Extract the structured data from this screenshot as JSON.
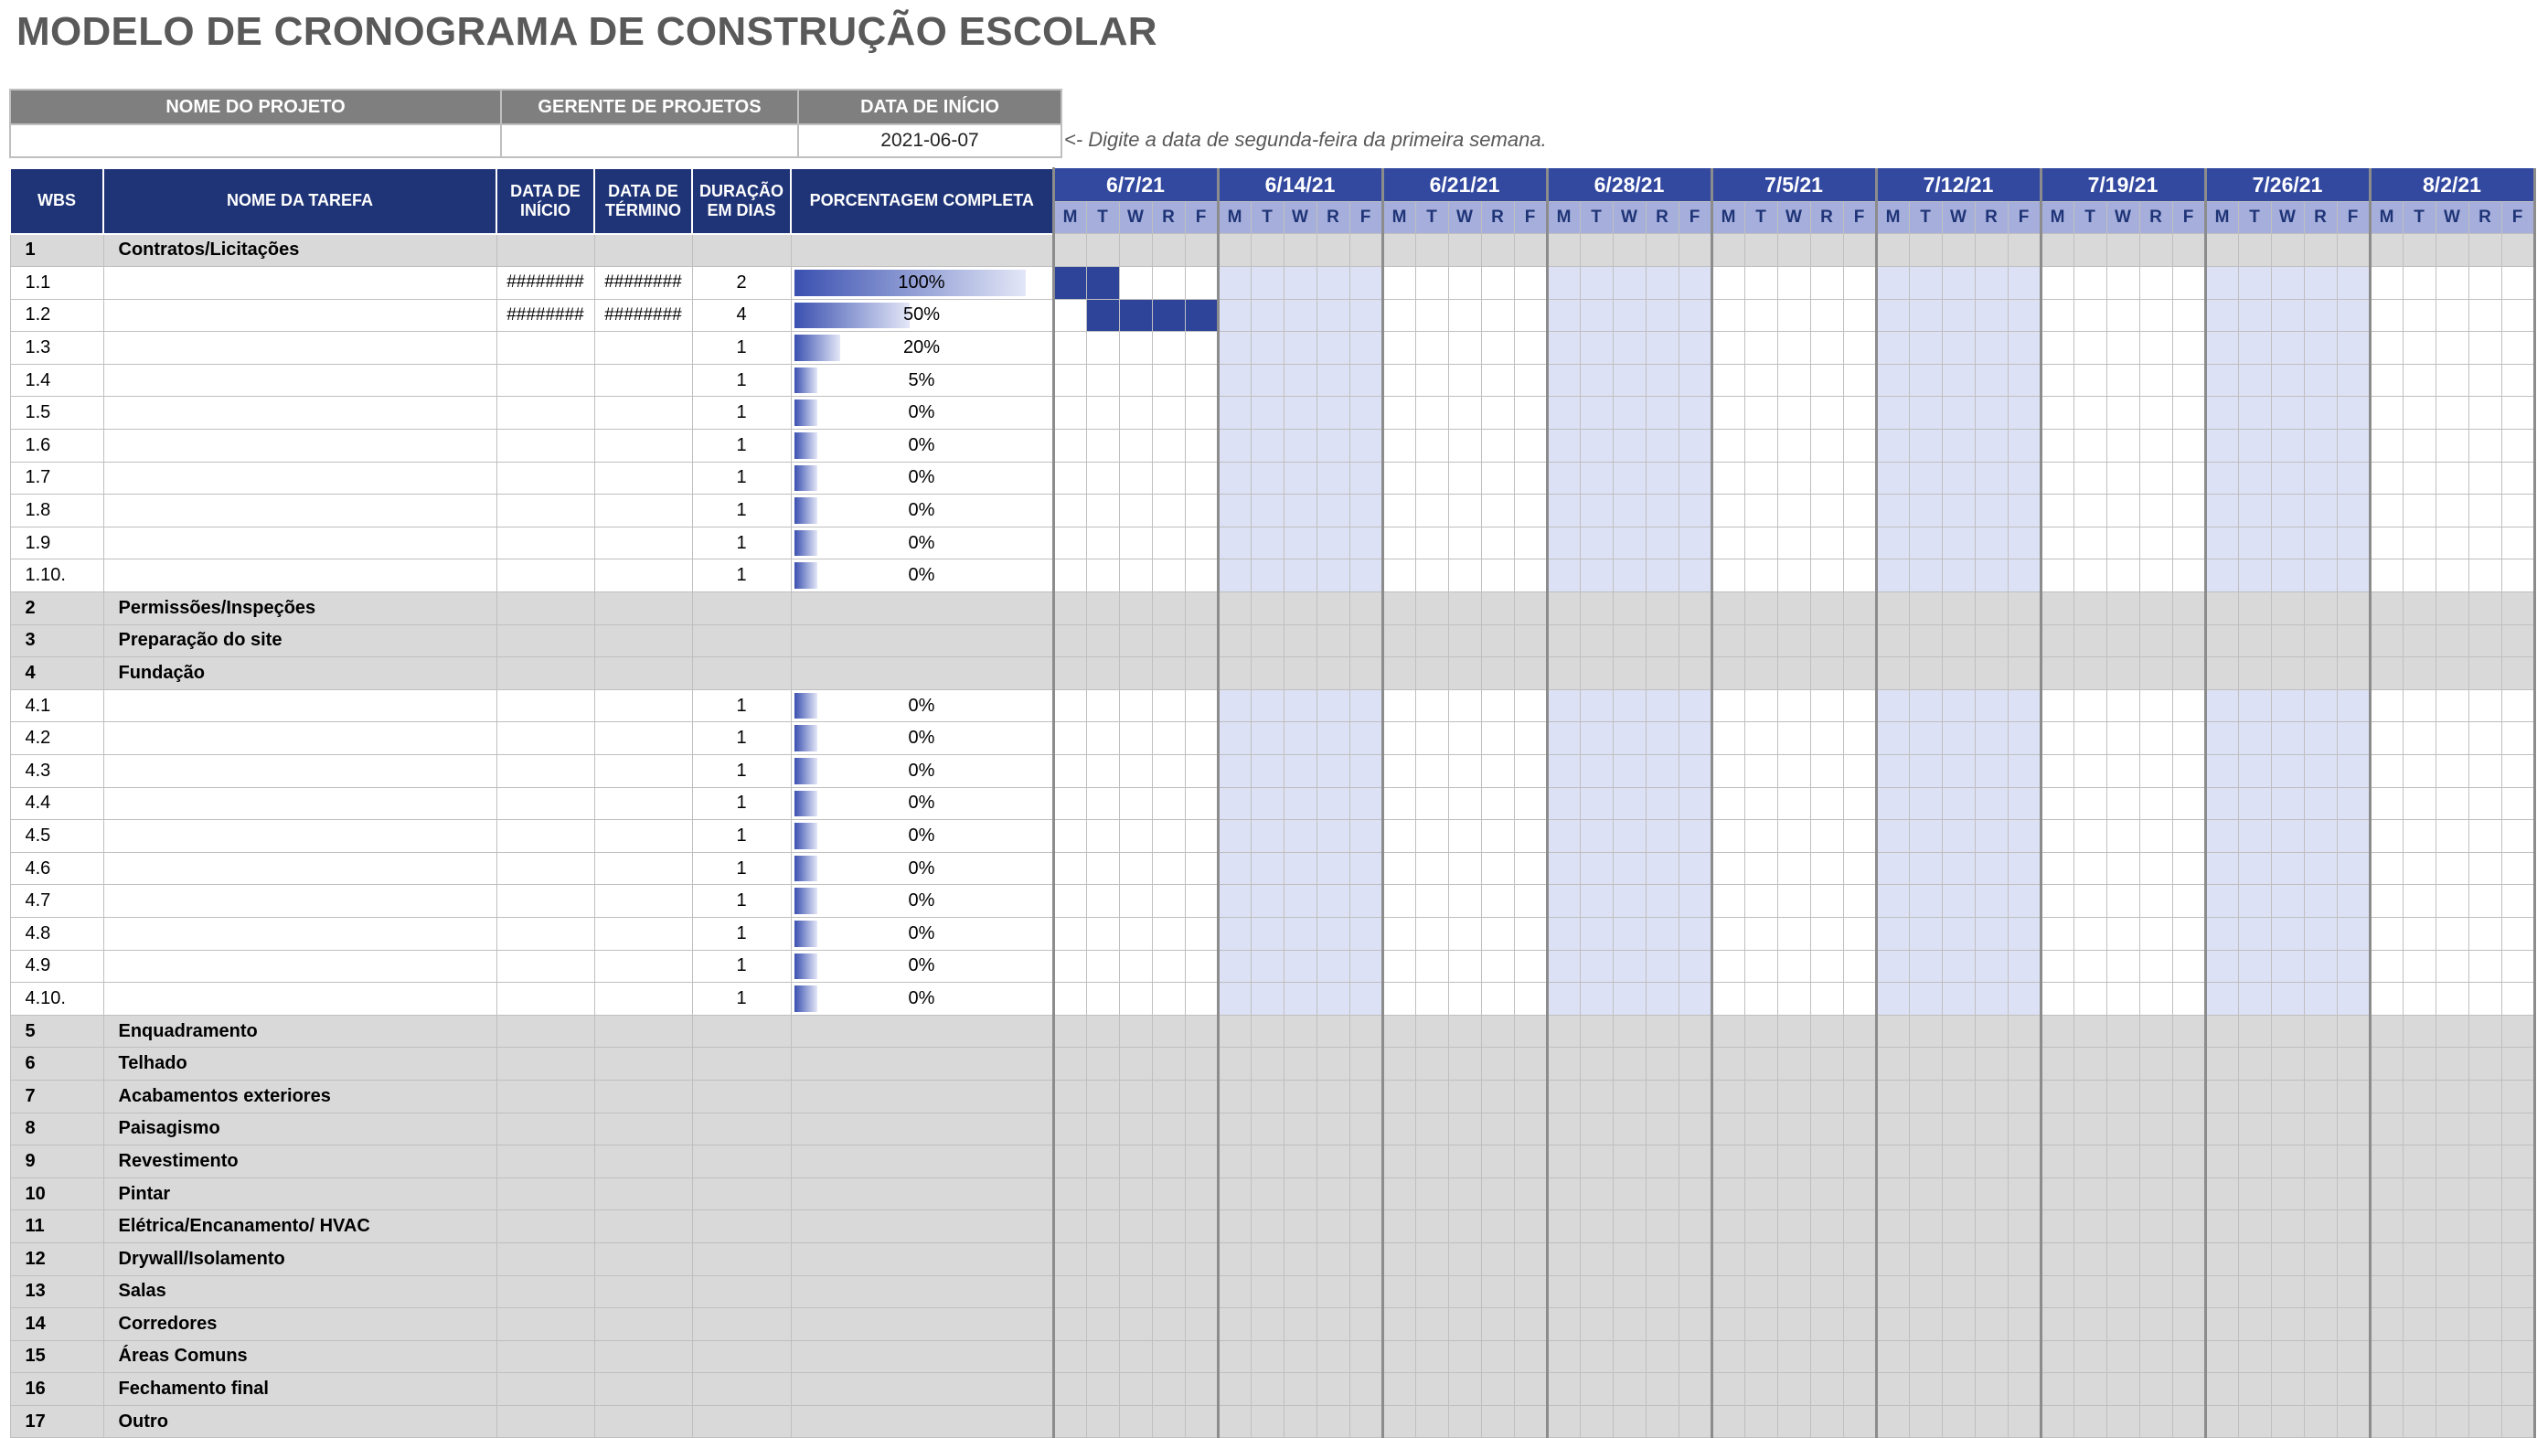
{
  "title": "MODELO DE CRONOGRAMA DE CONSTRUÇÃO ESCOLAR",
  "project": {
    "name_label": "NOME DO PROJETO",
    "manager_label": "GERENTE DE PROJETOS",
    "start_label": "DATA DE INÍCIO",
    "name_value": "",
    "manager_value": "",
    "start_value": "2021-06-07",
    "hint": "<- Digite a data de segunda-feira da primeira semana."
  },
  "headers": {
    "wbs": "WBS",
    "task": "NOME DA TAREFA",
    "start": "DATA DE INÍCIO",
    "end": "DATA DE TÉRMINO",
    "duration": "DURAÇÃO EM DIAS",
    "percent": "PORCENTAGEM COMPLETA"
  },
  "weeks": [
    "6/7/21",
    "6/14/21",
    "6/21/21",
    "6/28/21",
    "7/5/21",
    "7/12/21",
    "7/19/21",
    "7/26/21",
    "8/2/21"
  ],
  "day_letters": [
    "M",
    "T",
    "W",
    "R",
    "F"
  ],
  "colors": {
    "header": "#1f3477",
    "week_header": "#3349a0",
    "day_header": "#a6afdc",
    "alt_week": "#dde1f5",
    "group_row": "#d9d9d9",
    "gantt_fill": "#2d4499"
  },
  "rows": [
    {
      "type": "group",
      "wbs": "1",
      "name": "Contratos/Licitações"
    },
    {
      "type": "task",
      "wbs": "1.1",
      "name": "",
      "start": "########",
      "end": "########",
      "duration": "2",
      "percent": "100%",
      "pct": 1.0,
      "bar_start": 0,
      "bar_days": 2
    },
    {
      "type": "task",
      "wbs": "1.2",
      "name": "",
      "start": "########",
      "end": "########",
      "duration": "4",
      "percent": "50%",
      "pct": 0.5,
      "bar_start": 1,
      "bar_days": 4
    },
    {
      "type": "task",
      "wbs": "1.3",
      "name": "",
      "start": "",
      "end": "",
      "duration": "1",
      "percent": "20%",
      "pct": 0.2
    },
    {
      "type": "task",
      "wbs": "1.4",
      "name": "",
      "start": "",
      "end": "",
      "duration": "1",
      "percent": "5%",
      "pct": 0.05
    },
    {
      "type": "task",
      "wbs": "1.5",
      "name": "",
      "start": "",
      "end": "",
      "duration": "1",
      "percent": "0%",
      "pct": 0
    },
    {
      "type": "task",
      "wbs": "1.6",
      "name": "",
      "start": "",
      "end": "",
      "duration": "1",
      "percent": "0%",
      "pct": 0
    },
    {
      "type": "task",
      "wbs": "1.7",
      "name": "",
      "start": "",
      "end": "",
      "duration": "1",
      "percent": "0%",
      "pct": 0
    },
    {
      "type": "task",
      "wbs": "1.8",
      "name": "",
      "start": "",
      "end": "",
      "duration": "1",
      "percent": "0%",
      "pct": 0
    },
    {
      "type": "task",
      "wbs": "1.9",
      "name": "",
      "start": "",
      "end": "",
      "duration": "1",
      "percent": "0%",
      "pct": 0
    },
    {
      "type": "task",
      "wbs": "1.10.",
      "name": "",
      "start": "",
      "end": "",
      "duration": "1",
      "percent": "0%",
      "pct": 0
    },
    {
      "type": "group",
      "wbs": "2",
      "name": "Permissões/Inspeções"
    },
    {
      "type": "group",
      "wbs": "3",
      "name": "Preparação do site"
    },
    {
      "type": "group",
      "wbs": "4",
      "name": "Fundação"
    },
    {
      "type": "task",
      "wbs": "4.1",
      "name": "",
      "start": "",
      "end": "",
      "duration": "1",
      "percent": "0%",
      "pct": 0
    },
    {
      "type": "task",
      "wbs": "4.2",
      "name": "",
      "start": "",
      "end": "",
      "duration": "1",
      "percent": "0%",
      "pct": 0
    },
    {
      "type": "task",
      "wbs": "4.3",
      "name": "",
      "start": "",
      "end": "",
      "duration": "1",
      "percent": "0%",
      "pct": 0
    },
    {
      "type": "task",
      "wbs": "4.4",
      "name": "",
      "start": "",
      "end": "",
      "duration": "1",
      "percent": "0%",
      "pct": 0
    },
    {
      "type": "task",
      "wbs": "4.5",
      "name": "",
      "start": "",
      "end": "",
      "duration": "1",
      "percent": "0%",
      "pct": 0
    },
    {
      "type": "task",
      "wbs": "4.6",
      "name": "",
      "start": "",
      "end": "",
      "duration": "1",
      "percent": "0%",
      "pct": 0
    },
    {
      "type": "task",
      "wbs": "4.7",
      "name": "",
      "start": "",
      "end": "",
      "duration": "1",
      "percent": "0%",
      "pct": 0
    },
    {
      "type": "task",
      "wbs": "4.8",
      "name": "",
      "start": "",
      "end": "",
      "duration": "1",
      "percent": "0%",
      "pct": 0
    },
    {
      "type": "task",
      "wbs": "4.9",
      "name": "",
      "start": "",
      "end": "",
      "duration": "1",
      "percent": "0%",
      "pct": 0
    },
    {
      "type": "task",
      "wbs": "4.10.",
      "name": "",
      "start": "",
      "end": "",
      "duration": "1",
      "percent": "0%",
      "pct": 0
    },
    {
      "type": "group",
      "wbs": "5",
      "name": "Enquadramento"
    },
    {
      "type": "group",
      "wbs": "6",
      "name": "Telhado"
    },
    {
      "type": "group",
      "wbs": "7",
      "name": "Acabamentos exteriores"
    },
    {
      "type": "group",
      "wbs": "8",
      "name": "Paisagismo"
    },
    {
      "type": "group",
      "wbs": "9",
      "name": "Revestimento"
    },
    {
      "type": "group",
      "wbs": "10",
      "name": "Pintar"
    },
    {
      "type": "group",
      "wbs": "11",
      "name": "Elétrica/Encanamento/ HVAC"
    },
    {
      "type": "group",
      "wbs": "12",
      "name": "Drywall/Isolamento"
    },
    {
      "type": "group",
      "wbs": "13",
      "name": "Salas"
    },
    {
      "type": "group",
      "wbs": "14",
      "name": "Corredores"
    },
    {
      "type": "group",
      "wbs": "15",
      "name": "Áreas Comuns"
    },
    {
      "type": "group",
      "wbs": "16",
      "name": "Fechamento final"
    },
    {
      "type": "group",
      "wbs": "17",
      "name": "Outro"
    }
  ]
}
